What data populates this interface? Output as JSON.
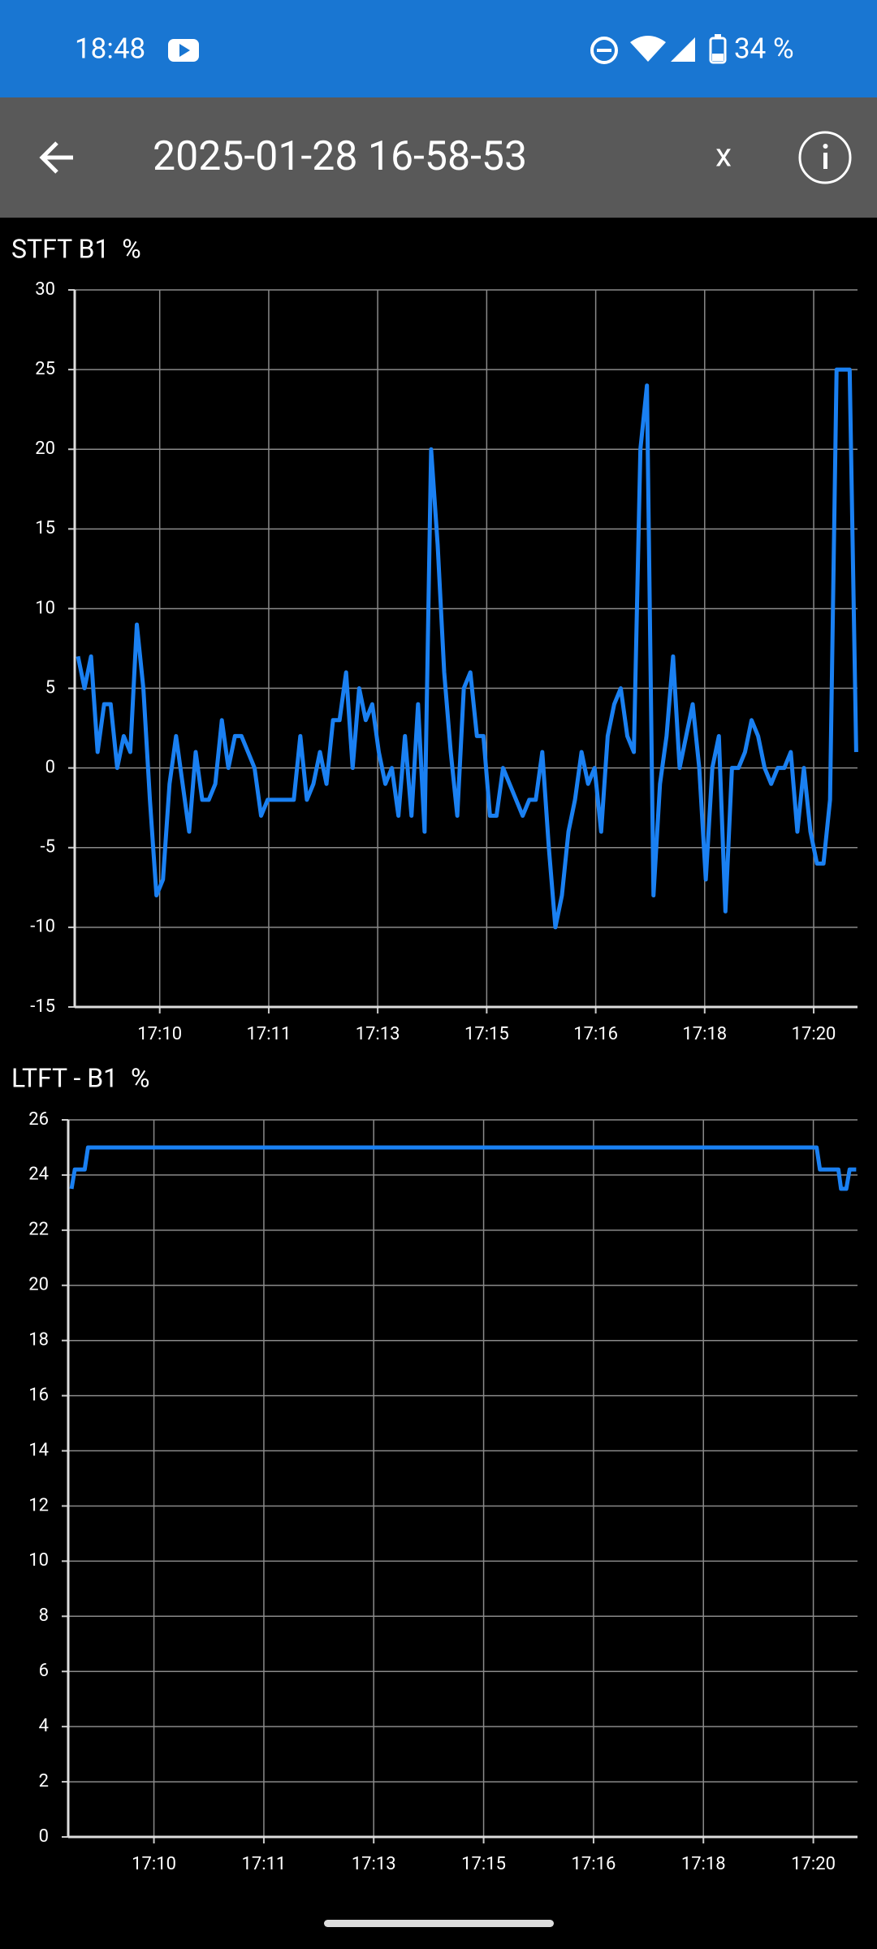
{
  "status_bar": {
    "time": "18:48",
    "battery": "34 %"
  },
  "toolbar": {
    "title": "2025-01-28 16-58-53",
    "close": "x"
  },
  "chart_data": [
    {
      "type": "line",
      "title": "STFT B1  %",
      "x": [
        8.75,
        8.85,
        8.95,
        9.05,
        9.15,
        9.25,
        9.35,
        9.45,
        9.55,
        9.65,
        9.75,
        9.85,
        9.95,
        10.05,
        10.15,
        10.25,
        10.35,
        10.45,
        10.55,
        10.65,
        10.75,
        10.85,
        10.95,
        11.05,
        11.15,
        11.25,
        11.35,
        11.45,
        11.55,
        11.65,
        11.75,
        11.85,
        11.95,
        12.05,
        12.15,
        12.25,
        12.35,
        12.45,
        12.55,
        12.65,
        12.75,
        12.85,
        12.95,
        13.05,
        13.15,
        13.25,
        13.35,
        13.45,
        13.55,
        13.65,
        13.75,
        13.85,
        13.95,
        14.05,
        14.15,
        14.25,
        14.35,
        14.45,
        14.55,
        14.65,
        14.75,
        14.85,
        14.95,
        15.05,
        15.15,
        15.25,
        15.35,
        15.45,
        15.55,
        15.65,
        15.75,
        15.85,
        15.95,
        16.05,
        16.15,
        16.25,
        16.35,
        16.45,
        16.55,
        16.65,
        16.75,
        16.85,
        16.95,
        17.05,
        17.15,
        17.25,
        17.35,
        17.45,
        17.55,
        17.65,
        17.75,
        17.85,
        17.95,
        18.05,
        18.15,
        18.25,
        18.35,
        18.45,
        18.55,
        18.65,
        18.75,
        18.85,
        18.95,
        19.05,
        19.15,
        19.25,
        19.35,
        19.45,
        19.55,
        19.65,
        19.75,
        19.85,
        19.95,
        20.05,
        20.15,
        20.25,
        20.35,
        20.45,
        20.55,
        20.65
      ],
      "series": [
        {
          "color": "#1a80f2",
          "values": [
            7,
            5,
            7,
            1,
            4,
            4,
            0,
            2,
            1,
            9,
            5,
            -2,
            -8,
            -7,
            -1,
            2,
            -1,
            -4,
            1,
            -2,
            -2,
            -1,
            3,
            0,
            2,
            2,
            1,
            0,
            -3,
            -2,
            -2,
            -2,
            -2,
            -2,
            2,
            -2,
            -1,
            1,
            -1,
            3,
            3,
            6,
            0,
            5,
            3,
            4,
            1,
            -1,
            0,
            -3,
            2,
            -3,
            4,
            -4,
            20,
            14,
            6,
            1,
            -3,
            5,
            6,
            2,
            2,
            -3,
            -3,
            0,
            -1,
            -2,
            -3,
            -2,
            -2,
            1,
            -5,
            -10,
            -8,
            -4,
            -2,
            1,
            -1,
            0,
            -4,
            2,
            4,
            5,
            2,
            1,
            20,
            24,
            -8,
            -1,
            2,
            7,
            0,
            2,
            4,
            0,
            -7,
            0,
            2,
            -9,
            0,
            0,
            1,
            3,
            2,
            0,
            -1,
            0,
            0,
            1,
            -4,
            0,
            -4,
            -6,
            -6,
            -2,
            25,
            25,
            25,
            1
          ]
        }
      ],
      "xlim": [
        8.7,
        20.67
      ],
      "xticks": [
        {
          "value": 10,
          "label": "17:10"
        },
        {
          "value": 11.667,
          "label": "17:11"
        },
        {
          "value": 13.333,
          "label": "17:13"
        },
        {
          "value": 15,
          "label": "17:15"
        },
        {
          "value": 16.667,
          "label": "17:16"
        },
        {
          "value": 18.333,
          "label": "17:18"
        },
        {
          "value": 20,
          "label": "17:20"
        }
      ],
      "ylim": [
        -15,
        30
      ],
      "yticks": [
        -15,
        -10,
        -5,
        0,
        5,
        10,
        15,
        20,
        25,
        30
      ],
      "grid": true
    },
    {
      "type": "line",
      "title": "LTFT - B1  %",
      "x": [
        8.75,
        8.8,
        8.95,
        9.0,
        20.05,
        20.1,
        20.38,
        20.42,
        20.5,
        20.55,
        20.65
      ],
      "series": [
        {
          "color": "#1a80f2",
          "values": [
            23.5,
            24.2,
            24.2,
            25,
            25,
            24.2,
            24.2,
            23.5,
            23.5,
            24.2,
            24.2
          ]
        }
      ],
      "xlim": [
        8.7,
        20.67
      ],
      "xticks": [
        {
          "value": 10,
          "label": "17:10"
        },
        {
          "value": 11.667,
          "label": "17:11"
        },
        {
          "value": 13.333,
          "label": "17:13"
        },
        {
          "value": 15,
          "label": "17:15"
        },
        {
          "value": 16.667,
          "label": "17:16"
        },
        {
          "value": 18.333,
          "label": "17:18"
        },
        {
          "value": 20,
          "label": "17:20"
        }
      ],
      "ylim": [
        0,
        26
      ],
      "yticks": [
        0,
        2,
        4,
        6,
        8,
        10,
        12,
        14,
        16,
        18,
        20,
        22,
        24,
        26
      ],
      "grid": true
    }
  ]
}
